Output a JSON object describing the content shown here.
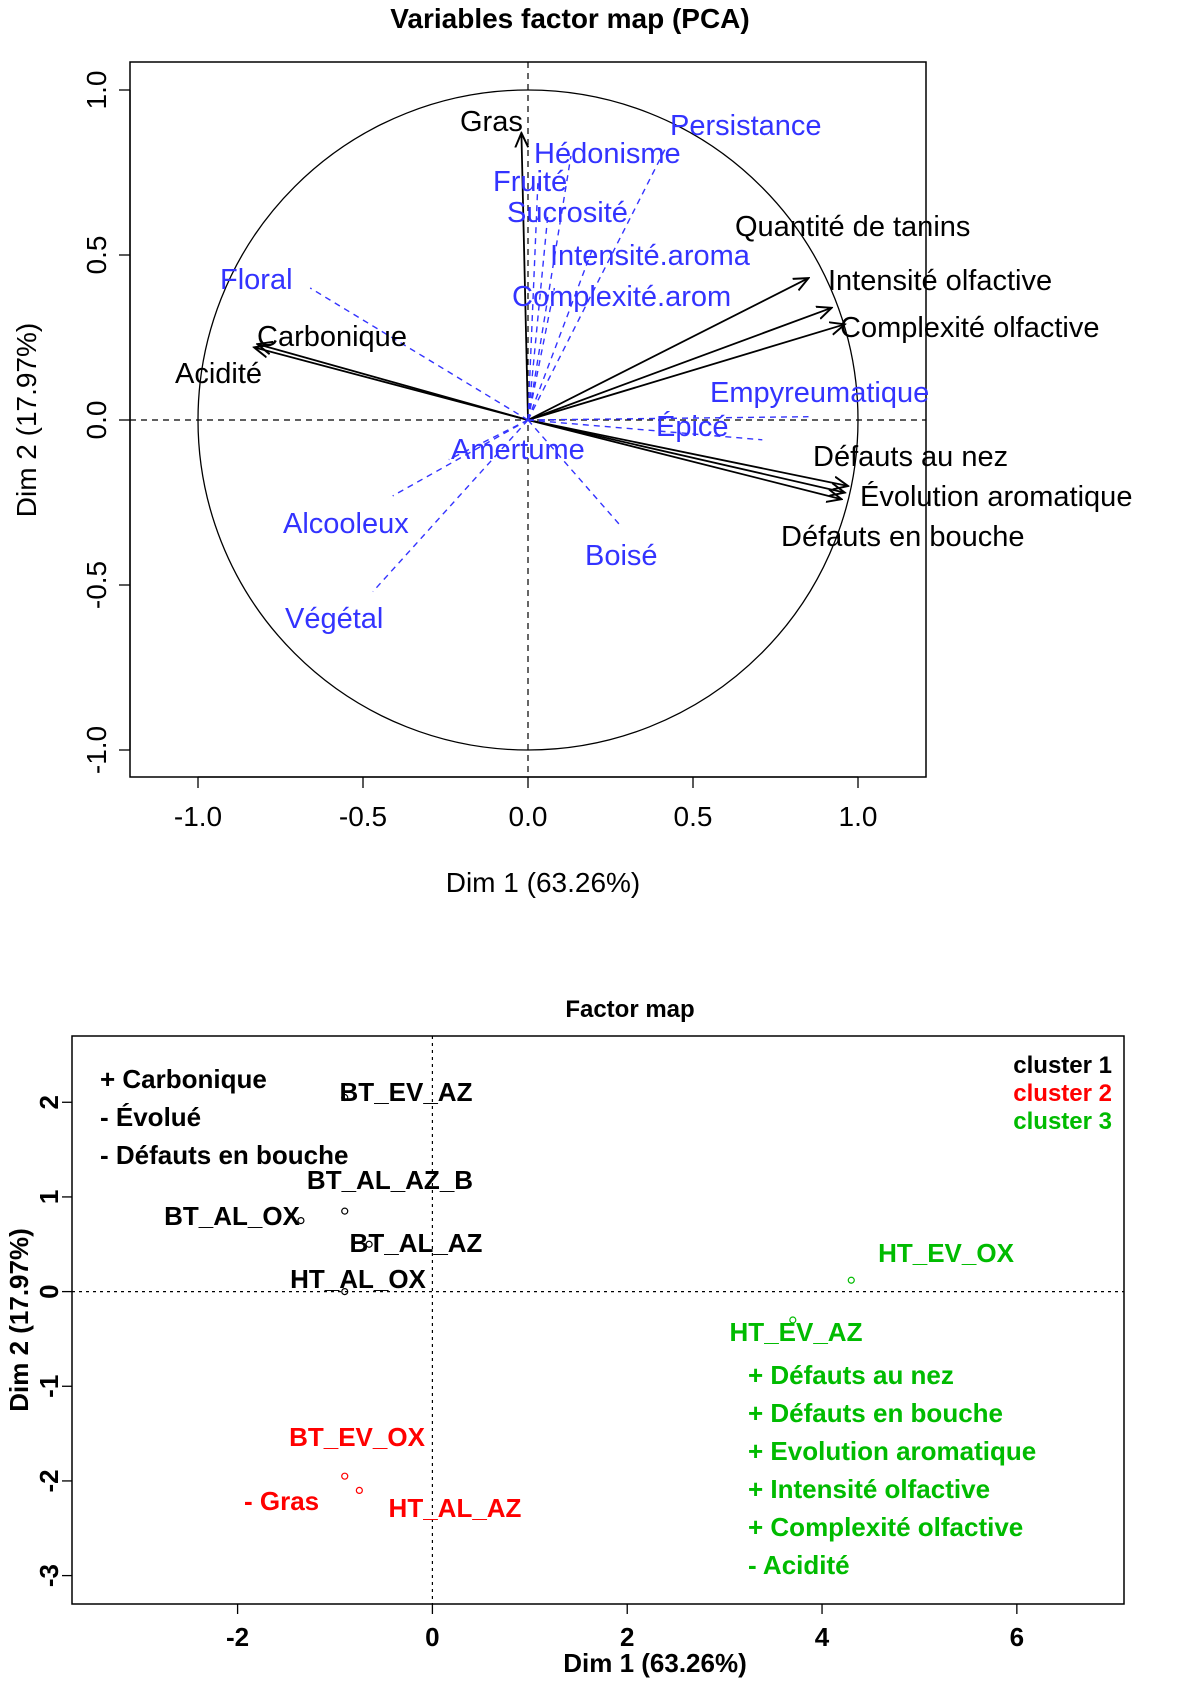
{
  "chart_data": [
    {
      "type": "scatter",
      "title": "Variables factor map (PCA)",
      "xlabel": "Dim 1 (63.26%)",
      "ylabel": "Dim 2 (17.97%)",
      "xlim": [
        -1.2,
        1.2
      ],
      "ylim": [
        -1.08,
        1.08
      ],
      "xticks": [
        "-1.0",
        "-0.5",
        "0.0",
        "0.5",
        "1.0"
      ],
      "yticks": [
        "-1.0",
        "-0.5",
        "0.0",
        "0.5",
        "1.0"
      ],
      "grid": false,
      "colors": {
        "active": "#000000",
        "supplementary": "#3333ff"
      },
      "vectors": [
        {
          "name": "Gras",
          "x": -0.02,
          "y": 0.87,
          "group": "active"
        },
        {
          "name": "Quantité de tanins",
          "x": 0.85,
          "y": 0.43,
          "group": "active"
        },
        {
          "name": "Intensité olfactive",
          "x": 0.92,
          "y": 0.34,
          "group": "active"
        },
        {
          "name": "Complexité olfactive",
          "x": 0.96,
          "y": 0.29,
          "group": "active"
        },
        {
          "name": "Carbonique",
          "x": -0.82,
          "y": 0.23,
          "group": "active"
        },
        {
          "name": "Acidité",
          "x": -0.83,
          "y": 0.22,
          "group": "active"
        },
        {
          "name": "Défauts au nez",
          "x": 0.97,
          "y": -0.2,
          "group": "active"
        },
        {
          "name": "Évolution aromatique",
          "x": 0.96,
          "y": -0.22,
          "group": "active"
        },
        {
          "name": "Défauts en bouche",
          "x": 0.95,
          "y": -0.24,
          "group": "active"
        },
        {
          "name": "Persistance",
          "x": 0.42,
          "y": 0.83,
          "group": "supplementary"
        },
        {
          "name": "Hédonisme",
          "x": 0.13,
          "y": 0.8,
          "group": "supplementary"
        },
        {
          "name": "Fruité",
          "x": 0.03,
          "y": 0.72,
          "group": "supplementary"
        },
        {
          "name": "Sucrosité",
          "x": 0.06,
          "y": 0.62,
          "group": "supplementary"
        },
        {
          "name": "Intensité.aroma",
          "x": 0.2,
          "y": 0.53,
          "group": "supplementary"
        },
        {
          "name": "Complexité.arom",
          "x": 0.08,
          "y": 0.4,
          "group": "supplementary"
        },
        {
          "name": "Floral",
          "x": -0.66,
          "y": 0.4,
          "group": "supplementary"
        },
        {
          "name": "Empyreumatique",
          "x": 0.85,
          "y": 0.01,
          "group": "supplementary"
        },
        {
          "name": "Épicé",
          "x": 0.71,
          "y": -0.06,
          "group": "supplementary"
        },
        {
          "name": "Amertume",
          "x": -0.24,
          "y": -0.12,
          "group": "supplementary"
        },
        {
          "name": "Alcooleux",
          "x": -0.41,
          "y": -0.23,
          "group": "supplementary"
        },
        {
          "name": "Boisé",
          "x": 0.28,
          "y": -0.32,
          "group": "supplementary"
        },
        {
          "name": "Végétal",
          "x": -0.47,
          "y": -0.52,
          "group": "supplementary"
        }
      ]
    },
    {
      "type": "scatter",
      "title": "Factor map",
      "xlabel": "Dim 1 (63.26%)",
      "ylabel": "Dim 2 (17.97%)",
      "xlim": [
        -3.7,
        7.1
      ],
      "ylim": [
        -3.3,
        2.7
      ],
      "xticks": [
        "-2",
        "0",
        "2",
        "4",
        "6"
      ],
      "yticks": [
        "-3",
        "-2",
        "-1",
        "0",
        "1",
        "2"
      ],
      "grid": false,
      "legend": {
        "placement": "top-right",
        "entries": [
          {
            "name": "cluster 1",
            "color": "#000000"
          },
          {
            "name": "cluster 2",
            "color": "#ff0000"
          },
          {
            "name": "cluster 3",
            "color": "#00bb00"
          }
        ]
      },
      "points": [
        {
          "name": "BT_EV_AZ",
          "x": -0.9,
          "y": 2.05,
          "cluster": 1
        },
        {
          "name": "BT_AL_AZ_B",
          "x": -0.9,
          "y": 0.85,
          "cluster": 1
        },
        {
          "name": "BT_AL_OX",
          "x": -1.35,
          "y": 0.75,
          "cluster": 1
        },
        {
          "name": "BT_AL_AZ",
          "x": -0.65,
          "y": 0.5,
          "cluster": 1
        },
        {
          "name": "HT_AL_OX",
          "x": -0.9,
          "y": 0.0,
          "cluster": 1
        },
        {
          "name": "BT_EV_OX",
          "x": -0.9,
          "y": -1.95,
          "cluster": 2
        },
        {
          "name": "HT_AL_AZ",
          "x": -0.75,
          "y": -2.1,
          "cluster": 2
        },
        {
          "name": "HT_EV_OX",
          "x": 4.3,
          "y": 0.12,
          "cluster": 3
        },
        {
          "name": "HT_EV_AZ",
          "x": 3.7,
          "y": -0.3,
          "cluster": 3
        }
      ],
      "annotations": [
        {
          "text": "+ Carbonique",
          "cluster": 1
        },
        {
          "text": "- Évolué",
          "cluster": 1
        },
        {
          "text": "- Défauts en bouche",
          "cluster": 1
        },
        {
          "text": "- Gras",
          "cluster": 2
        },
        {
          "text": "+ Défauts au nez",
          "cluster": 3
        },
        {
          "text": "+ Défauts en bouche",
          "cluster": 3
        },
        {
          "text": "+ Evolution aromatique",
          "cluster": 3
        },
        {
          "text": "+ Intensité olfactive",
          "cluster": 3
        },
        {
          "text": "+ Complexité olfactive",
          "cluster": 3
        },
        {
          "text": "- Acidité",
          "cluster": 3
        }
      ]
    }
  ]
}
